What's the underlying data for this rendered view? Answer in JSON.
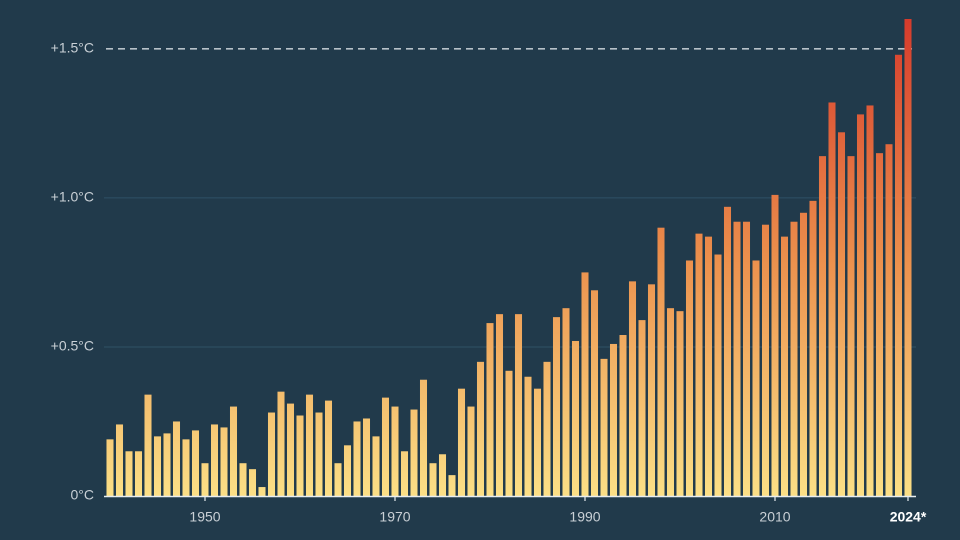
{
  "chart_data": {
    "type": "bar",
    "x": [
      1940,
      1941,
      1942,
      1943,
      1944,
      1945,
      1946,
      1947,
      1948,
      1949,
      1950,
      1951,
      1952,
      1953,
      1954,
      1955,
      1956,
      1957,
      1958,
      1959,
      1960,
      1961,
      1962,
      1963,
      1964,
      1965,
      1966,
      1967,
      1968,
      1969,
      1970,
      1971,
      1972,
      1973,
      1974,
      1975,
      1976,
      1977,
      1978,
      1979,
      1980,
      1981,
      1982,
      1983,
      1984,
      1985,
      1986,
      1987,
      1988,
      1989,
      1990,
      1991,
      1992,
      1993,
      1994,
      1995,
      1996,
      1997,
      1998,
      1999,
      2000,
      2001,
      2002,
      2003,
      2004,
      2005,
      2006,
      2007,
      2008,
      2009,
      2010,
      2011,
      2012,
      2013,
      2014,
      2015,
      2016,
      2017,
      2018,
      2019,
      2020,
      2021,
      2022,
      2023,
      2024
    ],
    "values": [
      0.19,
      0.24,
      0.15,
      0.15,
      0.34,
      0.2,
      0.21,
      0.25,
      0.19,
      0.22,
      0.11,
      0.24,
      0.23,
      0.3,
      0.11,
      0.09,
      0.03,
      0.28,
      0.35,
      0.31,
      0.27,
      0.34,
      0.28,
      0.32,
      0.11,
      0.17,
      0.25,
      0.26,
      0.2,
      0.33,
      0.3,
      0.15,
      0.29,
      0.39,
      0.11,
      0.14,
      0.07,
      0.36,
      0.3,
      0.45,
      0.58,
      0.61,
      0.42,
      0.61,
      0.4,
      0.36,
      0.45,
      0.6,
      0.63,
      0.52,
      0.75,
      0.69,
      0.46,
      0.51,
      0.54,
      0.72,
      0.59,
      0.71,
      0.9,
      0.63,
      0.62,
      0.79,
      0.88,
      0.87,
      0.81,
      0.97,
      0.92,
      0.92,
      0.79,
      0.91,
      1.01,
      0.87,
      0.92,
      0.95,
      0.99,
      1.14,
      1.32,
      1.22,
      1.14,
      1.28,
      1.31,
      1.15,
      1.18,
      1.48,
      1.6
    ],
    "color_scale": [
      "#fbdf86",
      "#eb8f4c",
      "#d63b2c"
    ],
    "xlim": [
      1939,
      2025
    ],
    "xticks": [
      1950,
      1970,
      1990,
      2010,
      {
        "value": 2024,
        "label": "2024*"
      }
    ],
    "ylim": [
      0,
      1.6
    ],
    "yticks": [
      {
        "value": 0,
        "label": "0°C"
      },
      {
        "value": 0.5,
        "label": "+0.5°C"
      },
      {
        "value": 1,
        "label": "+1.0°C"
      },
      {
        "value": 1.5,
        "label": "+1.5°C"
      }
    ],
    "grid": true,
    "threshold": 1.5
  }
}
